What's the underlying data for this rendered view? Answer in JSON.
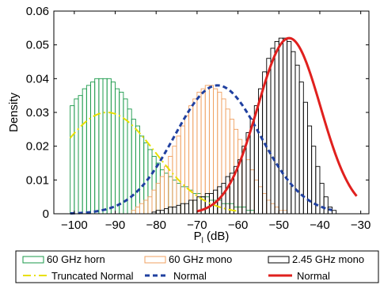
{
  "chart_data": {
    "type": "histogram+line",
    "xlabel_main": "P",
    "xlabel_sub": "l",
    "xlabel_unit": " (dB)",
    "ylabel": "Density",
    "xlim": [
      -105,
      -28
    ],
    "ylim": [
      0,
      0.06
    ],
    "xticks": [
      -100,
      -90,
      -80,
      -70,
      -60,
      -50,
      -40,
      -30
    ],
    "yticks": [
      0,
      0.01,
      0.02,
      0.03,
      0.04,
      0.05,
      0.06
    ],
    "grid": false,
    "legend_position": "bottom",
    "histograms": [
      {
        "name": "60 GHz horn",
        "color": "#1a9a4a",
        "x": [
          -100.5,
          -99.5,
          -98.5,
          -97.5,
          -96.5,
          -95.5,
          -94.5,
          -93.5,
          -92.5,
          -91.5,
          -90.5,
          -89.5,
          -88.5,
          -87.5,
          -86.5,
          -85.5,
          -84.5,
          -83.5,
          -82.5,
          -81.5,
          -80.5,
          -79.5,
          -78.5,
          -77.5,
          -76.5,
          -75.5,
          -74.5,
          -73.5,
          -72.5,
          -71.5,
          -70.5,
          -69.5,
          -68.5,
          -67.5,
          -66.5,
          -65.5,
          -64.5,
          -63.5,
          -62.5,
          -61.5,
          -60.5,
          -59.5,
          -58.5,
          -57.5,
          -56.5
        ],
        "y": [
          0.032,
          0.034,
          0.035,
          0.037,
          0.038,
          0.039,
          0.04,
          0.04,
          0.04,
          0.04,
          0.039,
          0.037,
          0.036,
          0.034,
          0.031,
          0.028,
          0.026,
          0.023,
          0.021,
          0.019,
          0.017,
          0.015,
          0.013,
          0.012,
          0.011,
          0.01,
          0.009,
          0.008,
          0.008,
          0.007,
          0.006,
          0.006,
          0.005,
          0.005,
          0.004,
          0.004,
          0.004,
          0.003,
          0.003,
          0.003,
          0.002,
          0.002,
          0.002,
          0.001,
          0.001
        ]
      },
      {
        "name": "60 GHz mono",
        "color": "#f0a060",
        "x": [
          -85.5,
          -84.5,
          -83.5,
          -82.5,
          -81.5,
          -80.5,
          -79.5,
          -78.5,
          -77.5,
          -76.5,
          -75.5,
          -74.5,
          -73.5,
          -72.5,
          -71.5,
          -70.5,
          -69.5,
          -68.5,
          -67.5,
          -66.5,
          -65.5,
          -64.5,
          -63.5,
          -62.5,
          -61.5,
          -60.5,
          -59.5,
          -58.5,
          -57.5,
          -56.5,
          -55.5,
          -54.5,
          -53.5,
          -52.5,
          -51.5,
          -50.5,
          -49.5,
          -48.5
        ],
        "y": [
          0.001,
          0.002,
          0.003,
          0.004,
          0.005,
          0.007,
          0.009,
          0.011,
          0.014,
          0.017,
          0.02,
          0.023,
          0.026,
          0.029,
          0.032,
          0.034,
          0.036,
          0.037,
          0.038,
          0.038,
          0.037,
          0.036,
          0.034,
          0.031,
          0.028,
          0.025,
          0.022,
          0.019,
          0.016,
          0.013,
          0.01,
          0.008,
          0.006,
          0.004,
          0.003,
          0.002,
          0.001,
          0.001
        ]
      },
      {
        "name": "2.45 GHz mono",
        "color": "#000000",
        "x": [
          -80.5,
          -79.5,
          -78.5,
          -77.5,
          -76.5,
          -75.5,
          -74.5,
          -73.5,
          -72.5,
          -71.5,
          -70.5,
          -69.5,
          -68.5,
          -67.5,
          -66.5,
          -65.5,
          -64.5,
          -63.5,
          -62.5,
          -61.5,
          -60.5,
          -59.5,
          -58.5,
          -57.5,
          -56.5,
          -55.5,
          -54.5,
          -53.5,
          -52.5,
          -51.5,
          -50.5,
          -49.5,
          -48.5,
          -47.5,
          -46.5,
          -45.5,
          -44.5,
          -43.5,
          -42.5,
          -41.5,
          -40.5,
          -39.5,
          -38.5,
          -37.5,
          -36.5
        ],
        "y": [
          0.0005,
          0.001,
          0.001,
          0.0015,
          0.002,
          0.002,
          0.0025,
          0.003,
          0.003,
          0.004,
          0.004,
          0.005,
          0.005,
          0.006,
          0.006,
          0.007,
          0.008,
          0.009,
          0.011,
          0.012,
          0.014,
          0.016,
          0.02,
          0.024,
          0.028,
          0.032,
          0.037,
          0.042,
          0.046,
          0.049,
          0.051,
          0.052,
          0.052,
          0.051,
          0.048,
          0.044,
          0.039,
          0.033,
          0.026,
          0.02,
          0.014,
          0.009,
          0.005,
          0.002,
          0.001
        ]
      }
    ],
    "curves": [
      {
        "name": "Truncated Normal",
        "color": "#e8e000",
        "dash": "10 4 2 4",
        "kind": "truncnorm",
        "mu": -92,
        "sigma": 11.8,
        "peak": 0.03,
        "xmin": -101,
        "xmax": -60
      },
      {
        "name": "Normal",
        "color": "#2040a0",
        "dash": "6 4",
        "kind": "norm",
        "mu": -65,
        "sigma": 10.5,
        "peak": 0.038,
        "xmin": -101,
        "xmax": -37
      },
      {
        "name": "Normal",
        "color": "#e0201e",
        "dash": "",
        "kind": "norm",
        "mu": -47.5,
        "sigma": 7.7,
        "peak": 0.052,
        "xmin": -70,
        "xmax": -31
      }
    ]
  }
}
